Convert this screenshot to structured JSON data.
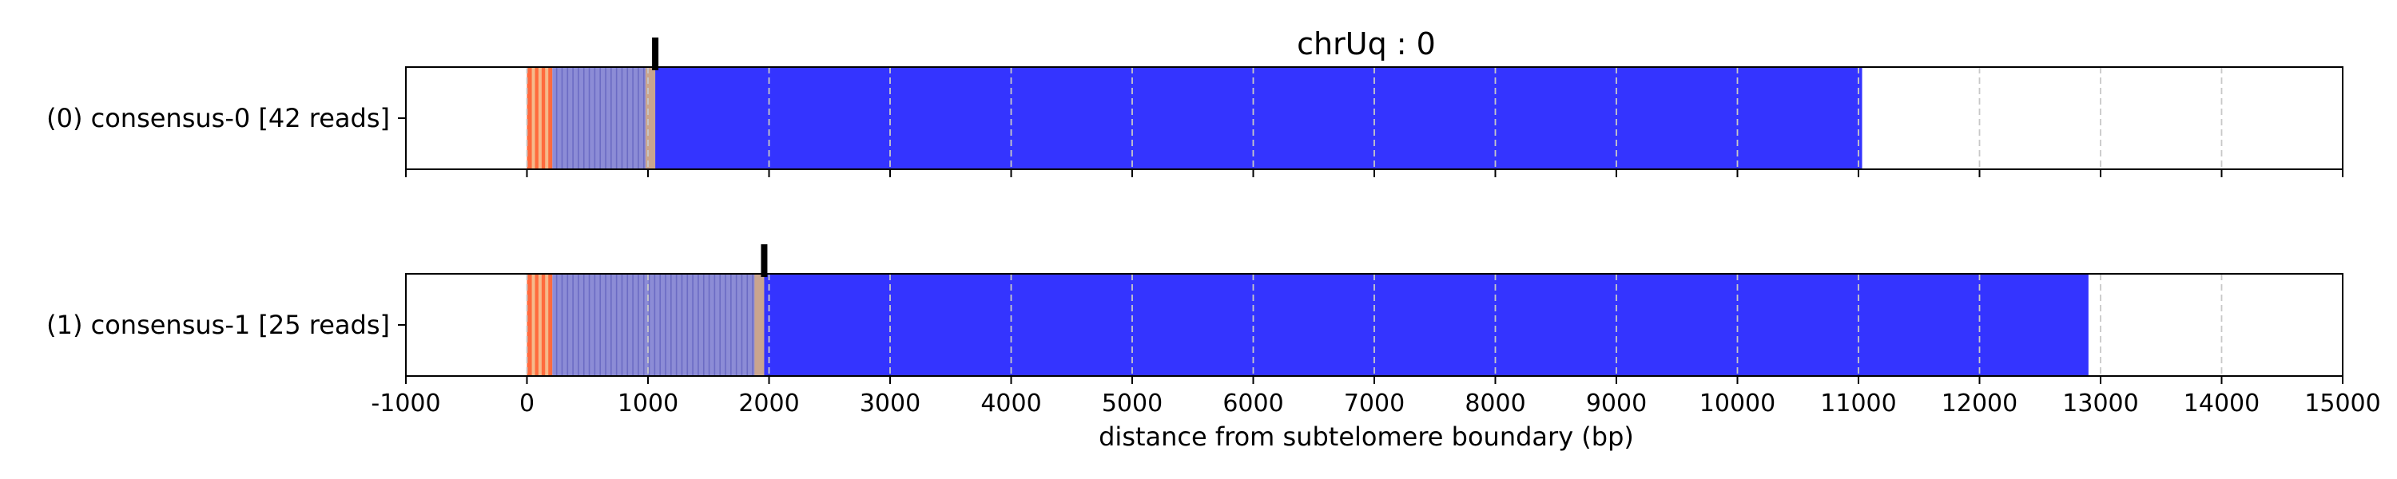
{
  "chart_data": {
    "type": "bar",
    "title": "chrUq : 0",
    "xlabel": "distance from subtelomere boundary (bp)",
    "xlim": [
      -1000,
      15000
    ],
    "xticks": [
      -1000,
      0,
      1000,
      2000,
      3000,
      4000,
      5000,
      6000,
      7000,
      8000,
      9000,
      10000,
      11000,
      12000,
      13000,
      14000,
      15000
    ],
    "grid": "vertical dashed",
    "colors": {
      "subtelomere": "#ff6a3d",
      "subtelomere_light": "#f5b98a",
      "telomere_variant": "#8c8cd6",
      "telomere": "#3434ff",
      "marker": "#000000"
    },
    "rows": [
      {
        "label": "(0) consensus-0 [42 reads]",
        "subtelomere_end": 210,
        "variant_end": 1060,
        "telomere_end": 11030,
        "marker_x": 1060
      },
      {
        "label": "(1) consensus-1 [25 reads]",
        "subtelomere_end": 210,
        "variant_end": 1960,
        "telomere_end": 12900,
        "marker_x": 1960
      }
    ]
  }
}
